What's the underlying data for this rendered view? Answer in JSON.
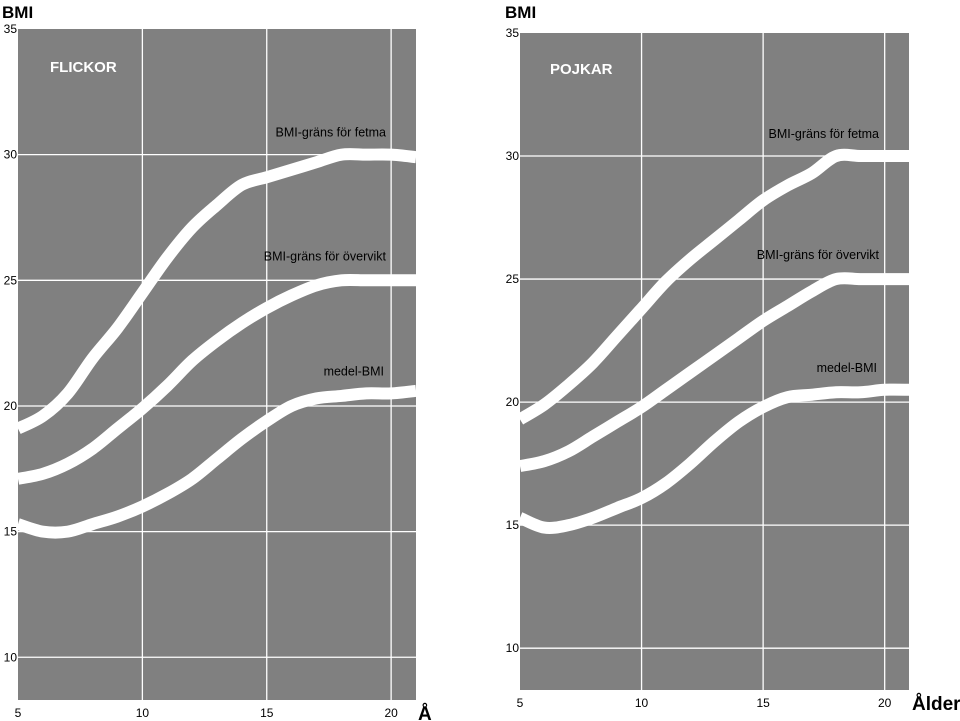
{
  "chart_data": [
    {
      "type": "line",
      "title": "FLICKOR",
      "ylabel": "BMI",
      "xlabel": "Å",
      "xlim": [
        5,
        21
      ],
      "ylim": [
        8.3,
        35
      ],
      "xticks": [
        5,
        10,
        15,
        20
      ],
      "yticks": [
        10,
        15,
        20,
        25,
        30,
        35
      ],
      "grid": true,
      "series": [
        {
          "name": "BMI-gräns för fetma",
          "x": [
            5,
            6,
            7,
            8,
            9,
            10,
            11,
            12,
            13,
            14,
            15,
            16,
            17,
            18,
            19,
            20,
            21
          ],
          "values": [
            19.1,
            19.6,
            20.5,
            21.9,
            23.1,
            24.5,
            25.9,
            27.1,
            28.0,
            28.8,
            29.1,
            29.4,
            29.7,
            30.0,
            30.0,
            30.0,
            29.9
          ]
        },
        {
          "name": "BMI-gräns för övervikt",
          "x": [
            5,
            6,
            7,
            8,
            9,
            10,
            11,
            12,
            13,
            14,
            15,
            16,
            17,
            18,
            19,
            20,
            21
          ],
          "values": [
            17.1,
            17.3,
            17.7,
            18.3,
            19.1,
            19.9,
            20.8,
            21.8,
            22.6,
            23.3,
            23.9,
            24.4,
            24.8,
            25.0,
            25.0,
            25.0,
            25.0
          ]
        },
        {
          "name": "medel-BMI",
          "x": [
            5,
            6,
            7,
            8,
            9,
            10,
            11,
            12,
            13,
            14,
            15,
            16,
            17,
            18,
            19,
            20,
            21
          ],
          "values": [
            15.3,
            15.0,
            15.0,
            15.3,
            15.6,
            16.0,
            16.5,
            17.1,
            17.9,
            18.7,
            19.4,
            20.0,
            20.3,
            20.4,
            20.5,
            20.5,
            20.6
          ]
        }
      ]
    },
    {
      "type": "line",
      "title": "POJKAR",
      "ylabel": "BMI",
      "xlabel": "Ålder",
      "xlim": [
        5,
        21
      ],
      "ylim": [
        8.3,
        35
      ],
      "xticks": [
        5,
        10,
        15,
        20
      ],
      "yticks": [
        10,
        15,
        20,
        25,
        30,
        35
      ],
      "grid": true,
      "series": [
        {
          "name": "BMI-gräns för fetma",
          "x": [
            5,
            6,
            7,
            8,
            9,
            10,
            11,
            12,
            13,
            14,
            15,
            16,
            17,
            18,
            19,
            20,
            21
          ],
          "values": [
            19.3,
            19.9,
            20.7,
            21.6,
            22.7,
            23.8,
            24.9,
            25.8,
            26.6,
            27.4,
            28.2,
            28.8,
            29.3,
            30.0,
            30.0,
            30.0,
            30.0
          ]
        },
        {
          "name": "BMI-gräns för övervikt",
          "x": [
            5,
            6,
            7,
            8,
            9,
            10,
            11,
            12,
            13,
            14,
            15,
            16,
            17,
            18,
            19,
            20,
            21
          ],
          "values": [
            17.4,
            17.6,
            18.0,
            18.6,
            19.2,
            19.8,
            20.5,
            21.2,
            21.9,
            22.6,
            23.3,
            23.9,
            24.5,
            25.0,
            25.0,
            25.0,
            25.0
          ]
        },
        {
          "name": "medel-BMI",
          "x": [
            5,
            6,
            7,
            8,
            9,
            10,
            11,
            12,
            13,
            14,
            15,
            16,
            17,
            18,
            19,
            20,
            21
          ],
          "values": [
            15.3,
            14.9,
            15.0,
            15.3,
            15.7,
            16.1,
            16.7,
            17.5,
            18.4,
            19.2,
            19.8,
            20.2,
            20.3,
            20.4,
            20.4,
            20.5,
            20.5
          ]
        }
      ]
    }
  ]
}
